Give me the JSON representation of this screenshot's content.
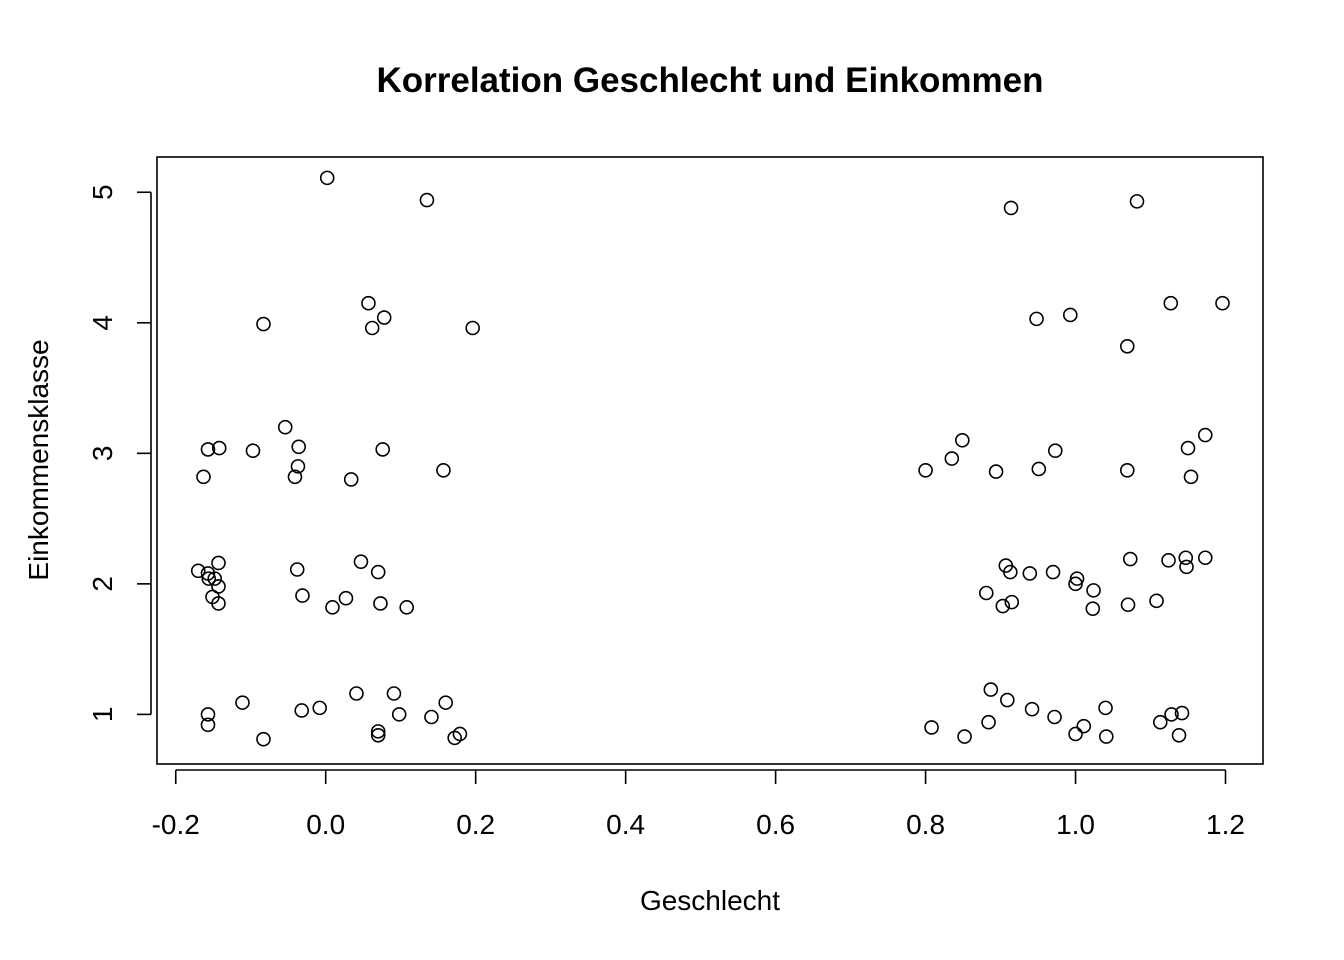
{
  "chart_data": {
    "type": "scatter",
    "title": "Korrelation Geschlecht und Einkommen",
    "xlabel": "Geschlecht",
    "ylabel": "Einkommensklasse",
    "xlim": [
      -0.225,
      1.25
    ],
    "ylim": [
      0.62,
      5.27
    ],
    "xticks": [
      -0.2,
      0.0,
      0.2,
      0.4,
      0.6,
      0.8,
      1.0,
      1.2
    ],
    "xtick_labels": [
      "-0.2",
      "0.0",
      "0.2",
      "0.4",
      "0.6",
      "0.8",
      "1.0",
      "1.2"
    ],
    "yticks": [
      1,
      2,
      3,
      4,
      5
    ],
    "ytick_labels": [
      "1",
      "2",
      "3",
      "4",
      "5"
    ],
    "grid": false,
    "marker": "open-circle",
    "points": [
      {
        "x": 0.002,
        "y": 5.11
      },
      {
        "x": 0.135,
        "y": 4.94
      },
      {
        "x": 0.914,
        "y": 4.88
      },
      {
        "x": 1.082,
        "y": 4.93
      },
      {
        "x": -0.083,
        "y": 3.99
      },
      {
        "x": 0.057,
        "y": 4.15
      },
      {
        "x": 0.062,
        "y": 3.96
      },
      {
        "x": 0.078,
        "y": 4.04
      },
      {
        "x": 0.196,
        "y": 3.96
      },
      {
        "x": 0.948,
        "y": 4.03
      },
      {
        "x": 0.993,
        "y": 4.06
      },
      {
        "x": 1.069,
        "y": 3.82
      },
      {
        "x": 1.127,
        "y": 4.15
      },
      {
        "x": 1.196,
        "y": 4.15
      },
      {
        "x": -0.163,
        "y": 2.82
      },
      {
        "x": -0.157,
        "y": 3.03
      },
      {
        "x": -0.142,
        "y": 3.04
      },
      {
        "x": -0.097,
        "y": 3.02
      },
      {
        "x": -0.054,
        "y": 3.2
      },
      {
        "x": -0.041,
        "y": 2.82
      },
      {
        "x": -0.037,
        "y": 2.9
      },
      {
        "x": -0.036,
        "y": 3.05
      },
      {
        "x": 0.034,
        "y": 2.8
      },
      {
        "x": 0.076,
        "y": 3.03
      },
      {
        "x": 0.157,
        "y": 2.87
      },
      {
        "x": 0.8,
        "y": 2.87
      },
      {
        "x": 0.835,
        "y": 2.96
      },
      {
        "x": 0.849,
        "y": 3.1
      },
      {
        "x": 0.894,
        "y": 2.86
      },
      {
        "x": 0.951,
        "y": 2.88
      },
      {
        "x": 0.973,
        "y": 3.02
      },
      {
        "x": 1.069,
        "y": 2.87
      },
      {
        "x": 1.15,
        "y": 3.04
      },
      {
        "x": 1.154,
        "y": 2.82
      },
      {
        "x": 1.173,
        "y": 3.14
      },
      {
        "x": -0.17,
        "y": 2.1
      },
      {
        "x": -0.157,
        "y": 2.08
      },
      {
        "x": -0.156,
        "y": 2.04
      },
      {
        "x": -0.151,
        "y": 1.9
      },
      {
        "x": -0.148,
        "y": 2.04
      },
      {
        "x": -0.143,
        "y": 1.85
      },
      {
        "x": -0.143,
        "y": 2.16
      },
      {
        "x": -0.143,
        "y": 1.98
      },
      {
        "x": -0.038,
        "y": 2.11
      },
      {
        "x": -0.031,
        "y": 1.91
      },
      {
        "x": 0.009,
        "y": 1.82
      },
      {
        "x": 0.027,
        "y": 1.89
      },
      {
        "x": 0.047,
        "y": 2.17
      },
      {
        "x": 0.07,
        "y": 2.09
      },
      {
        "x": 0.073,
        "y": 1.85
      },
      {
        "x": 0.108,
        "y": 1.82
      },
      {
        "x": 0.881,
        "y": 1.93
      },
      {
        "x": 0.903,
        "y": 1.83
      },
      {
        "x": 0.907,
        "y": 2.14
      },
      {
        "x": 0.913,
        "y": 2.09
      },
      {
        "x": 0.915,
        "y": 1.86
      },
      {
        "x": 0.939,
        "y": 2.08
      },
      {
        "x": 0.97,
        "y": 2.09
      },
      {
        "x": 1.0,
        "y": 2.0
      },
      {
        "x": 1.002,
        "y": 2.04
      },
      {
        "x": 1.023,
        "y": 1.81
      },
      {
        "x": 1.024,
        "y": 1.95
      },
      {
        "x": 1.07,
        "y": 1.84
      },
      {
        "x": 1.073,
        "y": 2.19
      },
      {
        "x": 1.108,
        "y": 1.87
      },
      {
        "x": 1.124,
        "y": 2.18
      },
      {
        "x": 1.147,
        "y": 2.2
      },
      {
        "x": 1.148,
        "y": 2.13
      },
      {
        "x": 1.173,
        "y": 2.2
      },
      {
        "x": -0.157,
        "y": 0.92
      },
      {
        "x": -0.157,
        "y": 1.0
      },
      {
        "x": -0.111,
        "y": 1.09
      },
      {
        "x": -0.083,
        "y": 0.81
      },
      {
        "x": -0.032,
        "y": 1.03
      },
      {
        "x": -0.008,
        "y": 1.05
      },
      {
        "x": 0.041,
        "y": 1.16
      },
      {
        "x": 0.07,
        "y": 0.84
      },
      {
        "x": 0.07,
        "y": 0.87
      },
      {
        "x": 0.091,
        "y": 1.16
      },
      {
        "x": 0.098,
        "y": 1.0
      },
      {
        "x": 0.141,
        "y": 0.98
      },
      {
        "x": 0.16,
        "y": 1.09
      },
      {
        "x": 0.172,
        "y": 0.82
      },
      {
        "x": 0.179,
        "y": 0.85
      },
      {
        "x": 0.808,
        "y": 0.9
      },
      {
        "x": 0.852,
        "y": 0.83
      },
      {
        "x": 0.884,
        "y": 0.94
      },
      {
        "x": 0.887,
        "y": 1.19
      },
      {
        "x": 0.909,
        "y": 1.11
      },
      {
        "x": 0.942,
        "y": 1.04
      },
      {
        "x": 0.972,
        "y": 0.98
      },
      {
        "x": 1.0,
        "y": 0.85
      },
      {
        "x": 1.011,
        "y": 0.91
      },
      {
        "x": 1.04,
        "y": 1.05
      },
      {
        "x": 1.041,
        "y": 0.83
      },
      {
        "x": 1.113,
        "y": 0.94
      },
      {
        "x": 1.128,
        "y": 1.0
      },
      {
        "x": 1.138,
        "y": 0.84
      },
      {
        "x": 1.142,
        "y": 1.01
      }
    ]
  }
}
